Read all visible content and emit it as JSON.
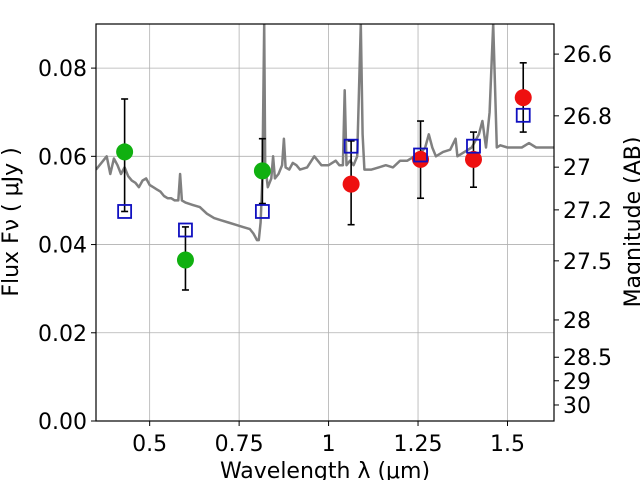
{
  "chart_data": {
    "type": "scatter",
    "title": "",
    "xlabel": "Wavelength  λ (μm)",
    "ylabel": "Flux  Fν  ( μJy )",
    "y2label": "Magnitude (AB)",
    "xlim": [
      0.35,
      1.63
    ],
    "ylim": [
      0.0,
      0.09
    ],
    "grid": true,
    "legend": "none",
    "x_ticks": [
      {
        "value": 0.5,
        "label": "0.5"
      },
      {
        "value": 0.75,
        "label": "0.75"
      },
      {
        "value": 1.0,
        "label": "1"
      },
      {
        "value": 1.25,
        "label": "1.25"
      },
      {
        "value": 1.5,
        "label": "1.5"
      }
    ],
    "y_ticks": [
      {
        "value": 0.0,
        "label": "0.00"
      },
      {
        "value": 0.02,
        "label": "0.02"
      },
      {
        "value": 0.04,
        "label": "0.04"
      },
      {
        "value": 0.06,
        "label": "0.06"
      },
      {
        "value": 0.08,
        "label": "0.08"
      }
    ],
    "y2_ticks": [
      {
        "mag": 26.6,
        "label": "26.6"
      },
      {
        "mag": 26.8,
        "label": "26.8"
      },
      {
        "mag": 27.0,
        "label": "27"
      },
      {
        "mag": 27.2,
        "label": "27.2"
      },
      {
        "mag": 27.5,
        "label": "27.5"
      },
      {
        "mag": 28.0,
        "label": "28"
      },
      {
        "mag": 28.5,
        "label": "28.5"
      },
      {
        "mag": 29.0,
        "label": "29"
      },
      {
        "mag": 30.0,
        "label": "30"
      }
    ],
    "series": [
      {
        "kind": "spectrum",
        "color": "#808080",
        "points": [
          [
            0.35,
            0.057
          ],
          [
            0.37,
            0.059
          ],
          [
            0.38,
            0.06
          ],
          [
            0.39,
            0.056
          ],
          [
            0.4,
            0.0595
          ],
          [
            0.41,
            0.058
          ],
          [
            0.42,
            0.056
          ],
          [
            0.43,
            0.0575
          ],
          [
            0.44,
            0.0555
          ],
          [
            0.45,
            0.0545
          ],
          [
            0.46,
            0.054
          ],
          [
            0.47,
            0.053
          ],
          [
            0.48,
            0.0545
          ],
          [
            0.49,
            0.055
          ],
          [
            0.5,
            0.0535
          ],
          [
            0.51,
            0.053
          ],
          [
            0.52,
            0.0525
          ],
          [
            0.53,
            0.052
          ],
          [
            0.54,
            0.051
          ],
          [
            0.55,
            0.0505
          ],
          [
            0.56,
            0.0505
          ],
          [
            0.57,
            0.05
          ],
          [
            0.58,
            0.05
          ],
          [
            0.585,
            0.056
          ],
          [
            0.59,
            0.05
          ],
          [
            0.6,
            0.0495
          ],
          [
            0.62,
            0.049
          ],
          [
            0.64,
            0.0485
          ],
          [
            0.66,
            0.047
          ],
          [
            0.68,
            0.046
          ],
          [
            0.7,
            0.0455
          ],
          [
            0.72,
            0.045
          ],
          [
            0.74,
            0.0445
          ],
          [
            0.76,
            0.044
          ],
          [
            0.78,
            0.0435
          ],
          [
            0.79,
            0.0425
          ],
          [
            0.8,
            0.041
          ],
          [
            0.805,
            0.041
          ],
          [
            0.81,
            0.045
          ],
          [
            0.815,
            0.055
          ],
          [
            0.82,
            0.09
          ],
          [
            0.823,
            0.058
          ],
          [
            0.83,
            0.053
          ],
          [
            0.84,
            0.055
          ],
          [
            0.845,
            0.06
          ],
          [
            0.85,
            0.055
          ],
          [
            0.86,
            0.056
          ],
          [
            0.87,
            0.058
          ],
          [
            0.875,
            0.064
          ],
          [
            0.88,
            0.0575
          ],
          [
            0.89,
            0.057
          ],
          [
            0.9,
            0.0585
          ],
          [
            0.91,
            0.058
          ],
          [
            0.92,
            0.057
          ],
          [
            0.94,
            0.0575
          ],
          [
            0.96,
            0.06
          ],
          [
            0.98,
            0.058
          ],
          [
            1.0,
            0.058
          ],
          [
            1.02,
            0.059
          ],
          [
            1.03,
            0.058
          ],
          [
            1.04,
            0.058
          ],
          [
            1.045,
            0.075
          ],
          [
            1.05,
            0.058
          ],
          [
            1.06,
            0.059
          ],
          [
            1.07,
            0.058
          ],
          [
            1.08,
            0.06
          ],
          [
            1.085,
            0.075
          ],
          [
            1.09,
            0.09
          ],
          [
            1.095,
            0.065
          ],
          [
            1.1,
            0.057
          ],
          [
            1.12,
            0.057
          ],
          [
            1.14,
            0.0575
          ],
          [
            1.16,
            0.058
          ],
          [
            1.18,
            0.0575
          ],
          [
            1.2,
            0.059
          ],
          [
            1.22,
            0.059
          ],
          [
            1.24,
            0.06
          ],
          [
            1.26,
            0.061
          ],
          [
            1.27,
            0.062
          ],
          [
            1.28,
            0.065
          ],
          [
            1.29,
            0.062
          ],
          [
            1.3,
            0.06
          ],
          [
            1.32,
            0.061
          ],
          [
            1.34,
            0.0615
          ],
          [
            1.355,
            0.064
          ],
          [
            1.36,
            0.06
          ],
          [
            1.38,
            0.061
          ],
          [
            1.4,
            0.062
          ],
          [
            1.42,
            0.065
          ],
          [
            1.43,
            0.068
          ],
          [
            1.44,
            0.062
          ],
          [
            1.45,
            0.07
          ],
          [
            1.46,
            0.09
          ],
          [
            1.47,
            0.062
          ],
          [
            1.48,
            0.0625
          ],
          [
            1.5,
            0.062
          ],
          [
            1.52,
            0.062
          ],
          [
            1.54,
            0.062
          ],
          [
            1.56,
            0.063
          ],
          [
            1.58,
            0.062
          ],
          [
            1.6,
            0.062
          ],
          [
            1.63,
            0.062
          ]
        ]
      },
      {
        "kind": "model-photometry",
        "marker": "open-square",
        "color": "#1010c0",
        "points": [
          [
            0.43,
            0.0475
          ],
          [
            0.6,
            0.0433
          ],
          [
            0.815,
            0.0475
          ],
          [
            1.063,
            0.0623
          ],
          [
            1.257,
            0.0603
          ],
          [
            1.405,
            0.0623
          ],
          [
            1.544,
            0.0693
          ]
        ]
      },
      {
        "kind": "observed-photometry",
        "marker": "filled-circle",
        "color": "#10b010",
        "points": [
          {
            "x": 0.43,
            "y": 0.061,
            "lo": 0.0475,
            "hi": 0.073
          },
          {
            "x": 0.6,
            "y": 0.0365,
            "lo": 0.0297,
            "hi": 0.044
          },
          {
            "x": 0.815,
            "y": 0.0567,
            "lo": 0.0493,
            "hi": 0.064
          }
        ]
      },
      {
        "kind": "observed-photometry",
        "marker": "filled-circle",
        "color": "#ee1010",
        "points": [
          {
            "x": 1.063,
            "y": 0.0537,
            "lo": 0.0445,
            "hi": 0.0635
          },
          {
            "x": 1.257,
            "y": 0.0593,
            "lo": 0.0505,
            "hi": 0.068
          },
          {
            "x": 1.405,
            "y": 0.0593,
            "lo": 0.053,
            "hi": 0.0655
          },
          {
            "x": 1.544,
            "y": 0.0733,
            "lo": 0.0655,
            "hi": 0.0812
          }
        ]
      }
    ]
  }
}
